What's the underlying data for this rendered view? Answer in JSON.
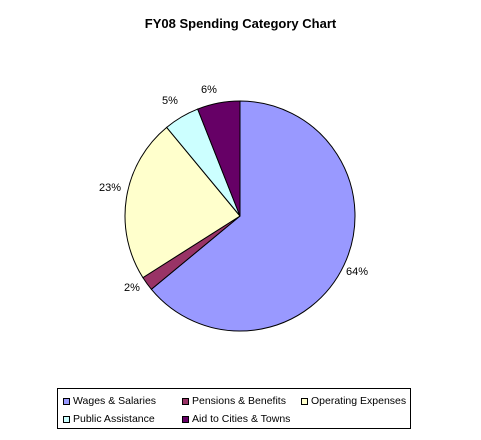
{
  "chart_data": {
    "type": "pie",
    "title": "FY08 Spending Category Chart",
    "slices": [
      {
        "name": "Wages & Salaries",
        "value": 64,
        "label": "64%",
        "color": "#9999ff"
      },
      {
        "name": "Pensions & Benefits",
        "value": 2,
        "label": "2%",
        "color": "#993366"
      },
      {
        "name": "Operating Expenses",
        "value": 23,
        "label": "23%",
        "color": "#ffffcc"
      },
      {
        "name": "Public Assistance",
        "value": 5,
        "label": "5%",
        "color": "#ccffff"
      },
      {
        "name": "Aid to Cities & Towns",
        "value": 6,
        "label": "6%",
        "color": "#660066"
      }
    ],
    "legend_position": "bottom"
  }
}
